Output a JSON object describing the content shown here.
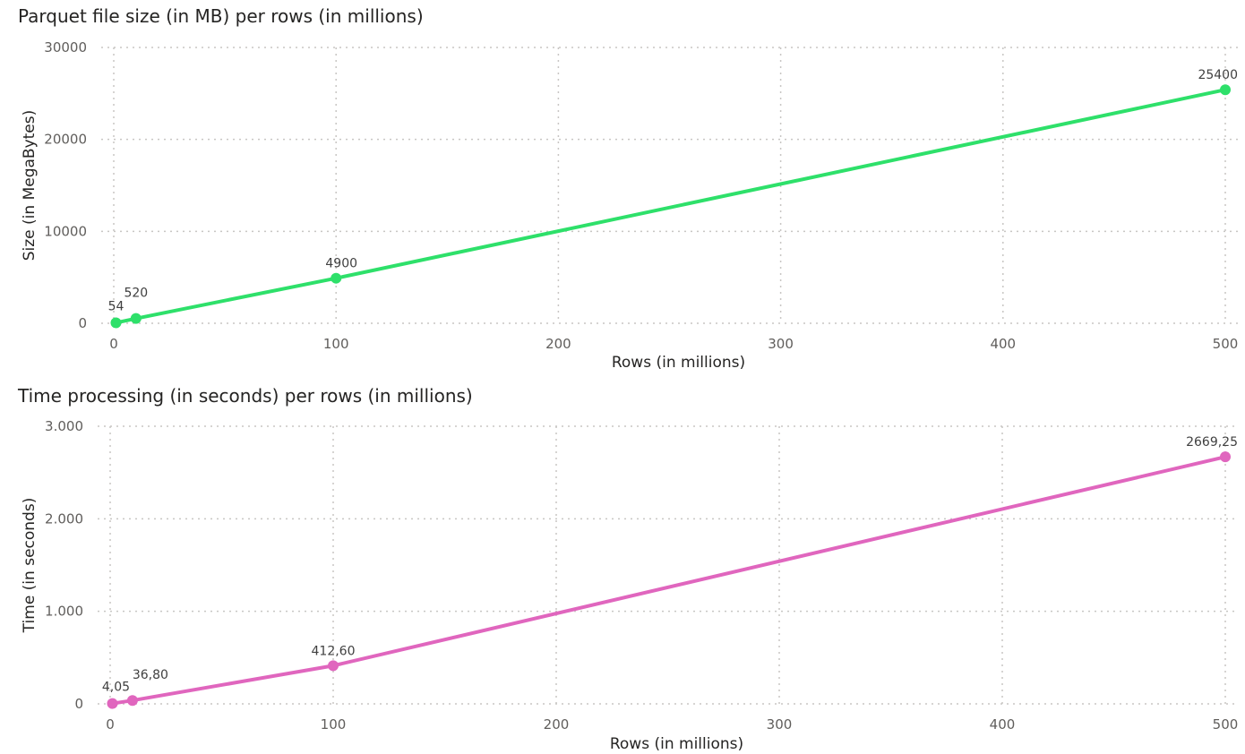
{
  "chart_data": [
    {
      "type": "line",
      "title": "Parquet file size (in MB) per rows (in millions)",
      "xlabel": "Rows (in millions)",
      "ylabel": "Size (in MegaBytes)",
      "xlim": [
        0,
        500
      ],
      "ylim": [
        0,
        30000
      ],
      "x_ticks": [
        "0",
        "100",
        "200",
        "300",
        "400",
        "500"
      ],
      "y_ticks": [
        "0",
        "10000",
        "20000",
        "30000"
      ],
      "grid": true,
      "series": [
        {
          "color": "#2ee06a",
          "x": [
            1,
            10,
            100,
            500
          ],
          "values": [
            54,
            520,
            4900,
            25400
          ],
          "labels": [
            "54",
            "520",
            "4900",
            "25400"
          ]
        }
      ]
    },
    {
      "type": "line",
      "title": "Time processing (in seconds) per rows (in millions)",
      "xlabel": "Rows (in millions)",
      "ylabel": "Time (in seconds)",
      "xlim": [
        0,
        500
      ],
      "ylim": [
        0,
        3000
      ],
      "x_ticks": [
        "0",
        "100",
        "200",
        "300",
        "400",
        "500"
      ],
      "y_ticks": [
        "0",
        "1.000",
        "2.000",
        "3.000"
      ],
      "grid": true,
      "series": [
        {
          "color": "#e066be",
          "x": [
            1,
            10,
            100,
            500
          ],
          "values": [
            4.05,
            36.8,
            412.6,
            2669.25
          ],
          "labels": [
            "4,05",
            "36,80",
            "412,60",
            "2669,25"
          ]
        }
      ]
    }
  ]
}
